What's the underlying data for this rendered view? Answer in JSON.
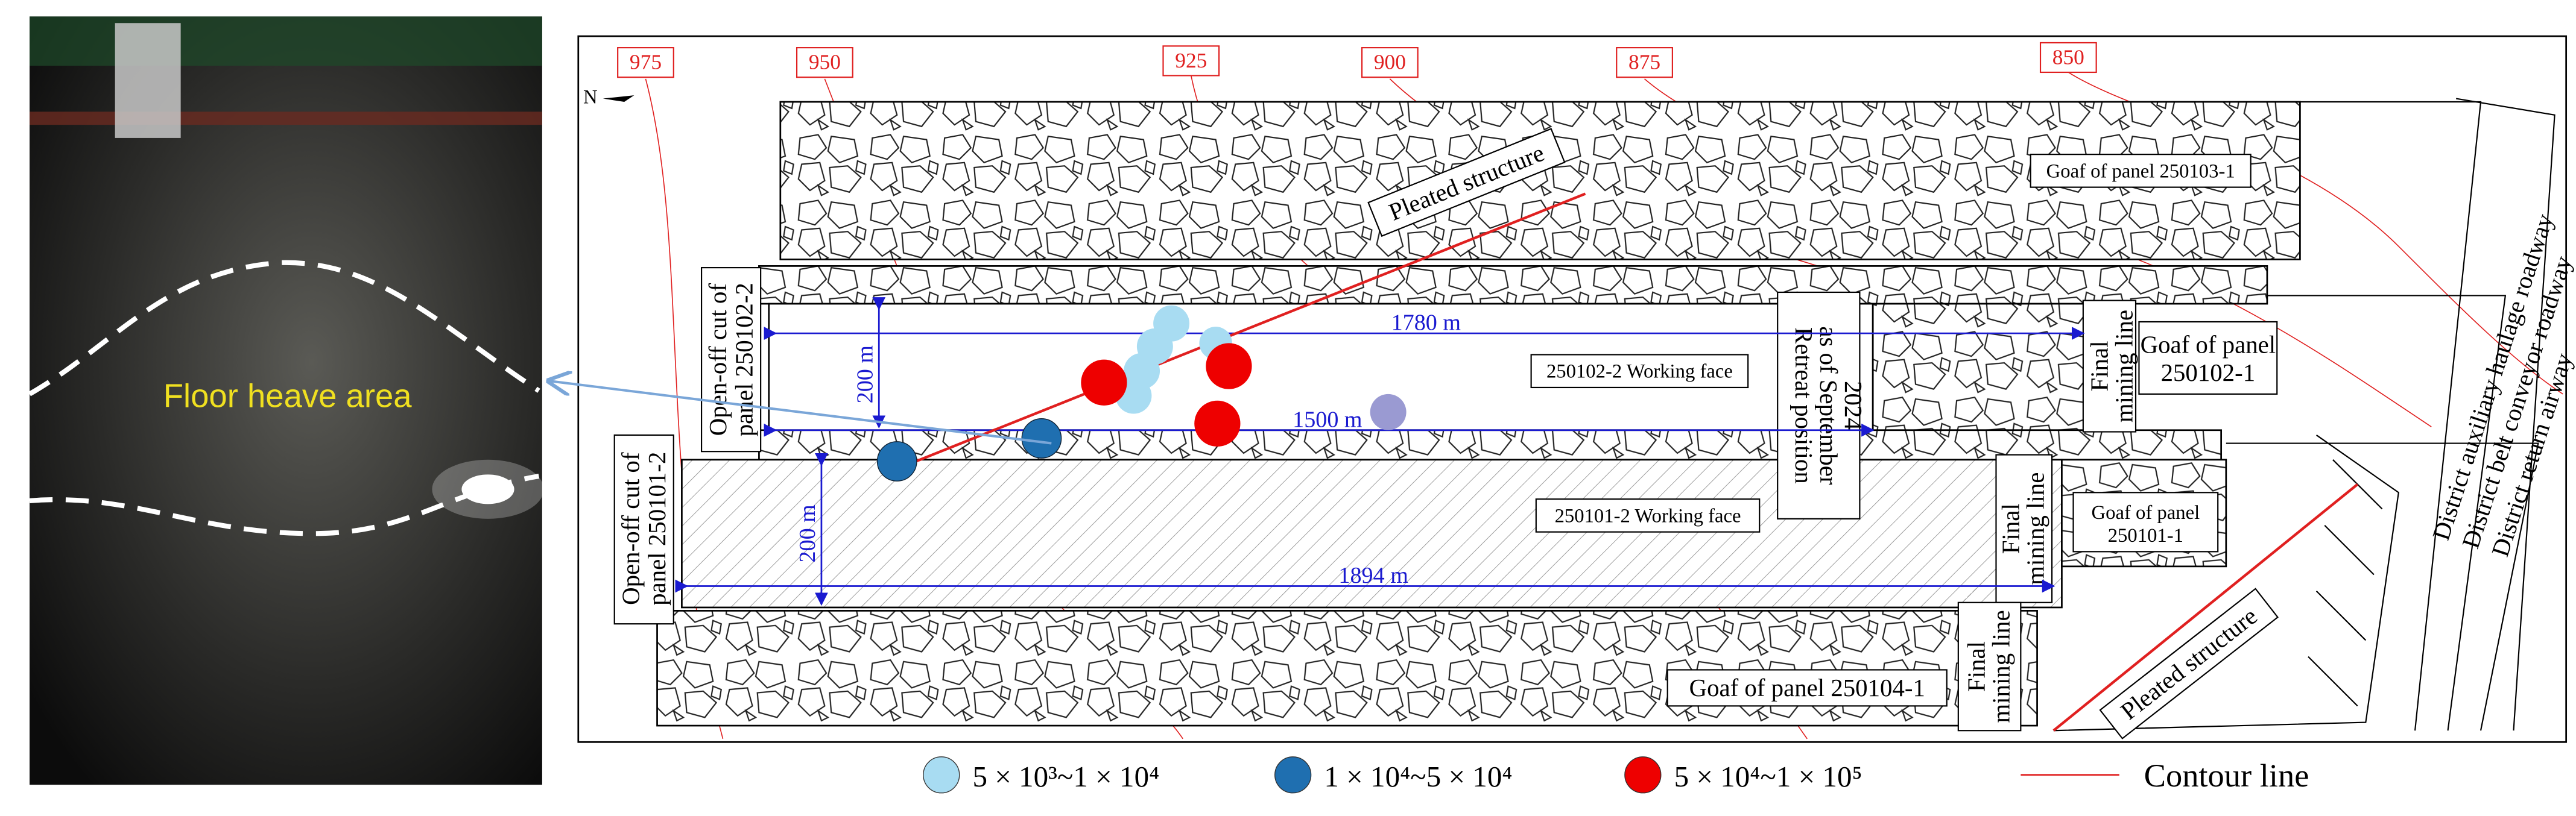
{
  "photo": {
    "label": "Floor heave area"
  },
  "map": {
    "contour_labels": [
      "975",
      "950",
      "925",
      "900",
      "875",
      "850"
    ],
    "north": "N",
    "pleated_structure": [
      "Pleated structure",
      "Pleated structure"
    ],
    "goaf_250103_1": "Goaf of panel 250103-1",
    "open_off_cut_250102_2": [
      "Open-off cut of",
      "panel 250102-2"
    ],
    "dim_1780": "1780 m",
    "dim_200_upper": "200 m",
    "working_face_250102_2": "250102-2 Working face",
    "dim_1500": "1500 m",
    "retreat_position": [
      "Retreat position",
      "as of September",
      "2024"
    ],
    "final_mining_line": [
      [
        "Final",
        "mining line"
      ],
      [
        "Final",
        "mining line"
      ],
      [
        "Final",
        "mining line"
      ]
    ],
    "goaf_250102_1": [
      "Goaf of panel",
      "250102-1"
    ],
    "open_off_cut_250101_2": [
      "Open-off cut of",
      "panel 250101-2"
    ],
    "working_face_250101_2": "250101-2 Working face",
    "goaf_250101_1": [
      "Goaf of panel",
      "250101-1"
    ],
    "dim_200_lower": "200 m",
    "dim_1894": "1894 m",
    "goaf_250104_1": "Goaf of panel 250104-1",
    "roadways": [
      "District auxiliary haulage roadway",
      "District belt conveyor roadway",
      "District return airway"
    ]
  },
  "legend": {
    "events": [
      "5 × 10³~1 × 10⁴",
      "1 × 10⁴~5 × 10⁴",
      "5 × 10⁴~1 × 10⁵"
    ],
    "contour": "Contour line"
  }
}
